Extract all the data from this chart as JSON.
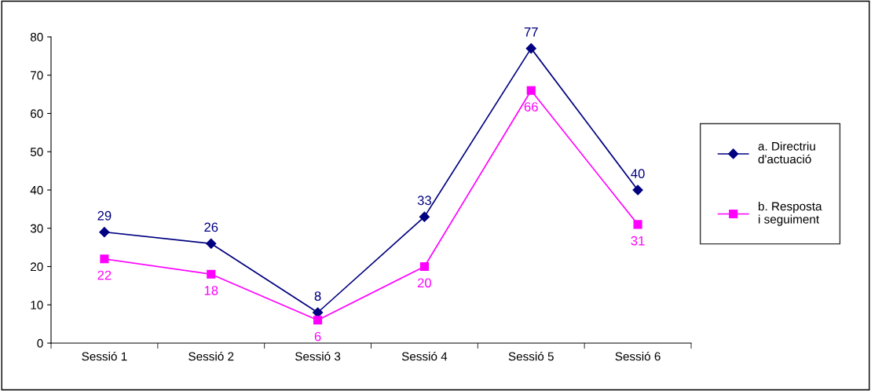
{
  "chart_data": {
    "type": "line",
    "categories": [
      "Sessió 1",
      "Sessió 2",
      "Sessió 3",
      "Sessió 4",
      "Sessió 5",
      "Sessió 6"
    ],
    "series": [
      {
        "name": "a. Directriu d'actuació",
        "color": "#000080",
        "marker": "diamond",
        "values": [
          29,
          26,
          8,
          33,
          77,
          40
        ]
      },
      {
        "name": "b. Resposta i seguiment",
        "color": "#ff00ff",
        "marker": "square",
        "values": [
          22,
          18,
          6,
          20,
          66,
          31
        ]
      }
    ],
    "ylim": [
      0,
      80
    ],
    "yticks": [
      0,
      10,
      20,
      30,
      40,
      50,
      60,
      70,
      80
    ],
    "data_labels": true,
    "legend": "right",
    "grid": false
  }
}
